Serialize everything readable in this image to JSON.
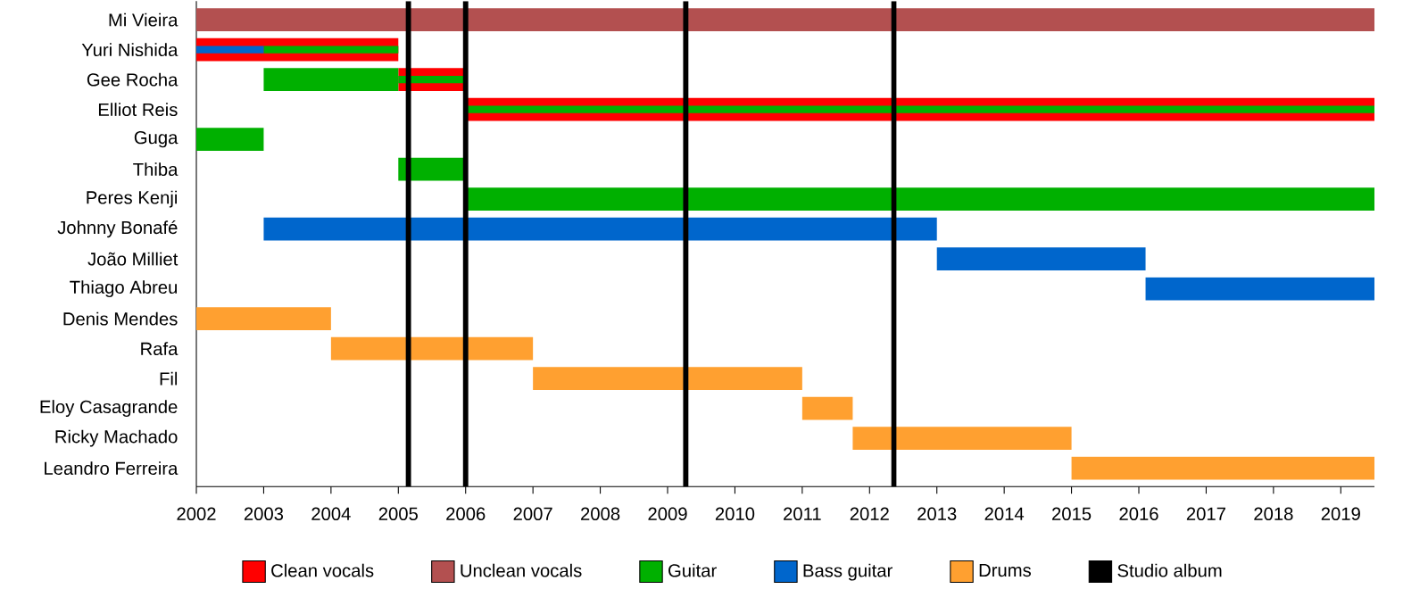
{
  "chart_data": {
    "type": "bar",
    "orientation": "horizontal",
    "legend": "bottom",
    "categories": [
      "Mi Vieira",
      "Yuri Nishida",
      "Gee Rocha",
      "Elliot Reis",
      "Guga",
      "Thiba",
      "Peres Kenji",
      "Johnny Bonafé",
      "João Milliet",
      "Thiago Abreu",
      "Denis Mendes",
      "Rafa",
      "Fil",
      "Eloy Casagrande",
      "Ricky Machado",
      "Leandro Ferreira"
    ],
    "series": [
      {
        "name": "Clean vocals",
        "color": "#ff0000",
        "base": [
          null,
          2002,
          2005,
          2006,
          null,
          null,
          null,
          null,
          null,
          null,
          null,
          null,
          null,
          null,
          null,
          null
        ],
        "values": [
          null,
          3,
          1,
          13.5,
          null,
          null,
          null,
          null,
          null,
          null,
          null,
          null,
          null,
          null,
          null,
          null
        ]
      },
      {
        "name": "Unclean vocals",
        "color": "#b35050",
        "base": [
          2002,
          null,
          null,
          null,
          null,
          null,
          null,
          null,
          null,
          null,
          null,
          null,
          null,
          null,
          null,
          null
        ],
        "values": [
          17.5,
          null,
          null,
          null,
          null,
          null,
          null,
          null,
          null,
          null,
          null,
          null,
          null,
          null,
          null,
          null
        ]
      },
      {
        "name": "Guitar",
        "color": "#00b000",
        "base": [
          null,
          null,
          2003,
          null,
          2002,
          2005,
          2006,
          null,
          null,
          null,
          null,
          null,
          null,
          null,
          null,
          null
        ],
        "values": [
          null,
          null,
          2,
          null,
          1,
          1,
          13.5,
          null,
          null,
          null,
          null,
          null,
          null,
          null,
          null,
          null
        ]
      },
      {
        "name": "Bass guitar",
        "color": "#0066cc",
        "base": [
          null,
          null,
          null,
          null,
          null,
          null,
          null,
          2003,
          2013,
          2016.1,
          null,
          null,
          null,
          null,
          null,
          null
        ],
        "values": [
          null,
          null,
          null,
          null,
          null,
          null,
          null,
          10,
          3.1,
          3.4,
          null,
          null,
          null,
          null,
          null,
          null
        ]
      },
      {
        "name": "Drums",
        "color": "#ffa030",
        "base": [
          null,
          null,
          null,
          null,
          null,
          null,
          null,
          null,
          null,
          null,
          2002,
          2004,
          2007,
          2011,
          2011.75,
          2015
        ],
        "values": [
          null,
          null,
          null,
          null,
          null,
          null,
          null,
          null,
          null,
          null,
          2,
          3,
          4,
          0.75,
          3.25,
          4.5
        ]
      },
      {
        "color": "#00b000",
        "base": [
          null,
          2003,
          2005,
          2006,
          null,
          null,
          null,
          null,
          null,
          null,
          null,
          null,
          null,
          null,
          null,
          null
        ],
        "values": [
          null,
          2,
          1,
          13.5,
          null,
          null,
          null,
          null,
          null,
          null,
          null,
          null,
          null,
          null,
          null,
          null
        ]
      },
      {
        "color": "#0066cc",
        "base": [
          null,
          2002,
          null,
          null,
          null,
          null,
          null,
          null,
          null,
          null,
          null,
          null,
          null,
          null,
          null,
          null
        ],
        "values": [
          null,
          1,
          null,
          null,
          null,
          null,
          null,
          null,
          null,
          null,
          null,
          null,
          null,
          null,
          null,
          null
        ]
      }
    ],
    "xlim": [
      2002,
      2019.5
    ],
    "xticks": [
      2002,
      2003,
      2004,
      2005,
      2006,
      2007,
      2008,
      2009,
      2010,
      2011,
      2012,
      2013,
      2014,
      2015,
      2016,
      2017,
      2018,
      2019
    ],
    "ref_lines": [
      {
        "axis": "x",
        "value": 2005.15,
        "label": "Studio album",
        "color": "#000000"
      },
      {
        "axis": "x",
        "value": 2006,
        "color": "#000000"
      },
      {
        "axis": "x",
        "value": 2009.27,
        "color": "#000000"
      },
      {
        "axis": "x",
        "value": 2012.36,
        "color": "#000000"
      }
    ]
  }
}
